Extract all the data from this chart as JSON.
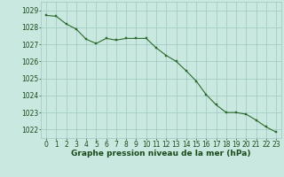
{
  "x": [
    0,
    1,
    2,
    3,
    4,
    5,
    6,
    7,
    8,
    9,
    10,
    11,
    12,
    13,
    14,
    15,
    16,
    17,
    18,
    19,
    20,
    21,
    22,
    23
  ],
  "y": [
    1028.7,
    1028.65,
    1028.2,
    1027.9,
    1027.3,
    1027.05,
    1027.35,
    1027.25,
    1027.35,
    1027.35,
    1027.35,
    1026.8,
    1026.35,
    1026.0,
    1025.45,
    1024.85,
    1024.05,
    1023.45,
    1023.0,
    1023.0,
    1022.9,
    1022.55,
    1022.15,
    1021.85
  ],
  "line_color": "#2d6a2d",
  "marker_color": "#2d6a2d",
  "bg_color": "#c8e8e0",
  "grid_color": "#9ec8c0",
  "axis_label_color": "#1a4a1a",
  "title": "Graphe pression niveau de la mer (hPa)",
  "ylim_min": 1021.5,
  "ylim_max": 1029.5,
  "yticks": [
    1022,
    1023,
    1024,
    1025,
    1026,
    1027,
    1028,
    1029
  ],
  "tick_fontsize": 5.5,
  "title_fontsize": 6.5
}
